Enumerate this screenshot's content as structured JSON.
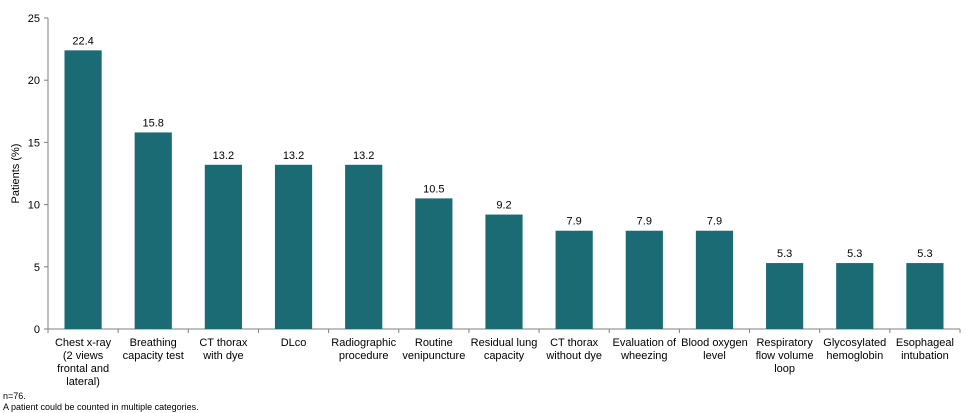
{
  "chart_data": {
    "type": "bar",
    "ylabel": "Patients (%)",
    "xlabel": "",
    "ylim": [
      0,
      25
    ],
    "yticks": [
      0,
      5,
      10,
      15,
      20,
      25
    ],
    "grid": false,
    "bar_color": "#1a6b73",
    "categories": [
      [
        "Chest x-ray",
        "(2 views",
        "frontal and",
        "lateral)"
      ],
      [
        "Breathing",
        "capacity test"
      ],
      [
        "CT thorax",
        "with dye"
      ],
      [
        "DLco"
      ],
      [
        "Radiographic",
        "procedure"
      ],
      [
        "Routine",
        "venipuncture"
      ],
      [
        "Residual lung",
        "capacity"
      ],
      [
        "CT thorax",
        "without dye"
      ],
      [
        "Evaluation of",
        "wheezing"
      ],
      [
        "Blood oxygen",
        "level"
      ],
      [
        "Respiratory",
        "flow volume",
        "loop"
      ],
      [
        "Glycosylated",
        "hemoglobin"
      ],
      [
        "Esophageal",
        "intubation"
      ]
    ],
    "values": [
      22.4,
      15.8,
      13.2,
      13.2,
      13.2,
      10.5,
      9.2,
      7.9,
      7.9,
      7.9,
      5.3,
      5.3,
      5.3
    ],
    "data_labels": [
      "22.4",
      "15.8",
      "13.2",
      "13.2",
      "13.2",
      "10.5",
      "9.2",
      "7.9",
      "7.9",
      "7.9",
      "5.3",
      "5.3",
      "5.3"
    ]
  },
  "footnotes": {
    "n": "n=76.",
    "note": "A patient could be counted in multiple categories."
  }
}
